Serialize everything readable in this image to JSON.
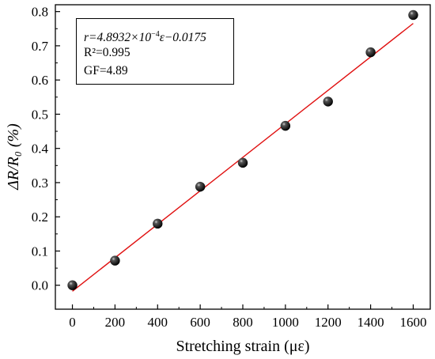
{
  "chart_data": {
    "type": "scatter",
    "xlabel": "Stretching strain (με)",
    "ylabel": "ΔR/R₀ (%)",
    "xlim": [
      -80,
      1680
    ],
    "ylim": [
      -0.07,
      0.82
    ],
    "xticks": [
      0,
      200,
      400,
      600,
      800,
      1000,
      1200,
      1400,
      1600
    ],
    "yticks": [
      0.0,
      0.1,
      0.2,
      0.3,
      0.4,
      0.5,
      0.6,
      0.7,
      0.8
    ],
    "ytick_labels": [
      "0.0",
      "0.1",
      "0.2",
      "0.3",
      "0.4",
      "0.5",
      "0.6",
      "0.7",
      "0.8"
    ],
    "series": [
      {
        "x": [
          0,
          200,
          400,
          600,
          800,
          1000,
          1200,
          1400,
          1600
        ],
        "y": [
          0.0,
          0.072,
          0.18,
          0.288,
          0.358,
          0.466,
          0.537,
          0.681,
          0.79
        ],
        "marker": "black sphere"
      }
    ],
    "fit_line": {
      "slope": 0.00048932,
      "intercept": -0.0175,
      "x_range": [
        0,
        1600
      ],
      "color": "#e01010"
    },
    "annotation": {
      "line1_prefix": "r=4.8932×10",
      "line1_exp": "−4",
      "line1_suffix": "ε−0.0175",
      "line2": "R²=0.995",
      "line3": "GF=4.89"
    },
    "grid": false,
    "legend": "none"
  }
}
